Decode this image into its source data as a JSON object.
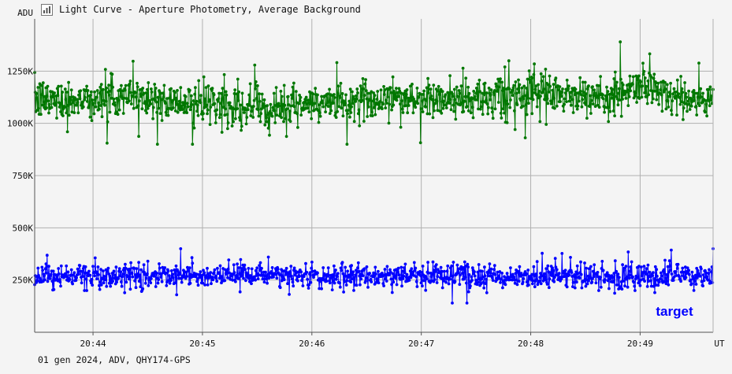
{
  "title": "Light Curve - Aperture Photometry, Average Background",
  "footer": "01 gen 2024, ADV, QHY174-GPS",
  "icon": "chart-window-icon",
  "chart_data": {
    "type": "line",
    "ylabel": "ADU",
    "xlabel": "UT",
    "ylim": [
      0,
      1500000
    ],
    "yticks": [
      250000,
      500000,
      750000,
      1000000,
      1250000
    ],
    "ytick_labels": [
      "250K",
      "500K",
      "750K",
      "1000K",
      "1250K"
    ],
    "xlim": [
      "20:43:28",
      "20:49:40"
    ],
    "xticks": [
      "20:44",
      "20:45",
      "20:46",
      "20:47",
      "20:48",
      "20:49"
    ],
    "grid": true,
    "legend": "none",
    "series": [
      {
        "name": "",
        "color": "#007700",
        "points_count": 1200,
        "mean": 1110000,
        "typical_spread": 60000,
        "min": 900000,
        "max": 1390000,
        "baseline_anchors": [
          {
            "t": "20:43:28",
            "y": 1110000
          },
          {
            "t": "20:44:30",
            "y": 1125000
          },
          {
            "t": "20:44:50",
            "y": 1090000
          },
          {
            "t": "20:45:50",
            "y": 1080000
          },
          {
            "t": "20:46:40",
            "y": 1120000
          },
          {
            "t": "20:47:20",
            "y": 1110000
          },
          {
            "t": "20:48:10",
            "y": 1140000
          },
          {
            "t": "20:48:40",
            "y": 1120000
          },
          {
            "t": "20:49:05",
            "y": 1185000
          },
          {
            "t": "20:49:20",
            "y": 1120000
          },
          {
            "t": "20:49:40",
            "y": 1110000
          }
        ]
      },
      {
        "name": "target",
        "color": "#0000ff",
        "points_count": 1200,
        "mean": 268000,
        "typical_spread": 35000,
        "min": 140000,
        "max": 400000,
        "baseline_anchors": [
          {
            "t": "20:43:28",
            "y": 270000
          },
          {
            "t": "20:49:40",
            "y": 268000
          }
        ]
      }
    ]
  }
}
